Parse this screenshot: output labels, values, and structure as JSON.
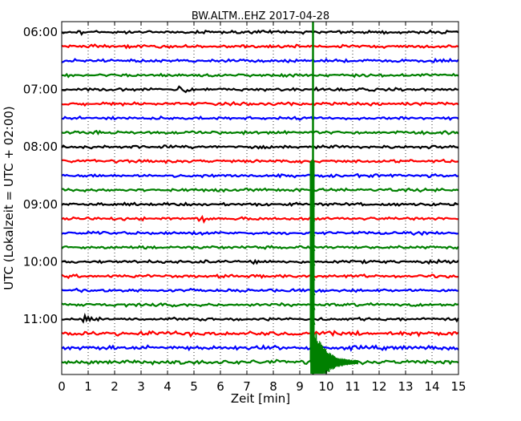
{
  "chart_data": {
    "type": "line",
    "title": "BW.ALTM..EHZ 2017-04-28",
    "xlabel": "Zeit  [min]",
    "ylabel": "UTC (Lokalzeit = UTC + 02:00)",
    "xlim": [
      0,
      15
    ],
    "x_ticks": [
      "0",
      "1",
      "2",
      "3",
      "4",
      "5",
      "6",
      "7",
      "8",
      "9",
      "10",
      "11",
      "12",
      "13",
      "14",
      "15"
    ],
    "y_ticks": [
      "06:00",
      "07:00",
      "08:00",
      "09:00",
      "10:00",
      "11:00"
    ],
    "grid": "vertical dotted",
    "colors": [
      "#000000",
      "#ff0000",
      "#0000ff",
      "#008000"
    ],
    "trace_interval_min": 15,
    "first_trace": "06:00",
    "trace_count": 24,
    "event": {
      "onset_min": 9.5,
      "color": "#008000",
      "peak_trace": "11:45",
      "coda_end_min": 11.2
    }
  }
}
